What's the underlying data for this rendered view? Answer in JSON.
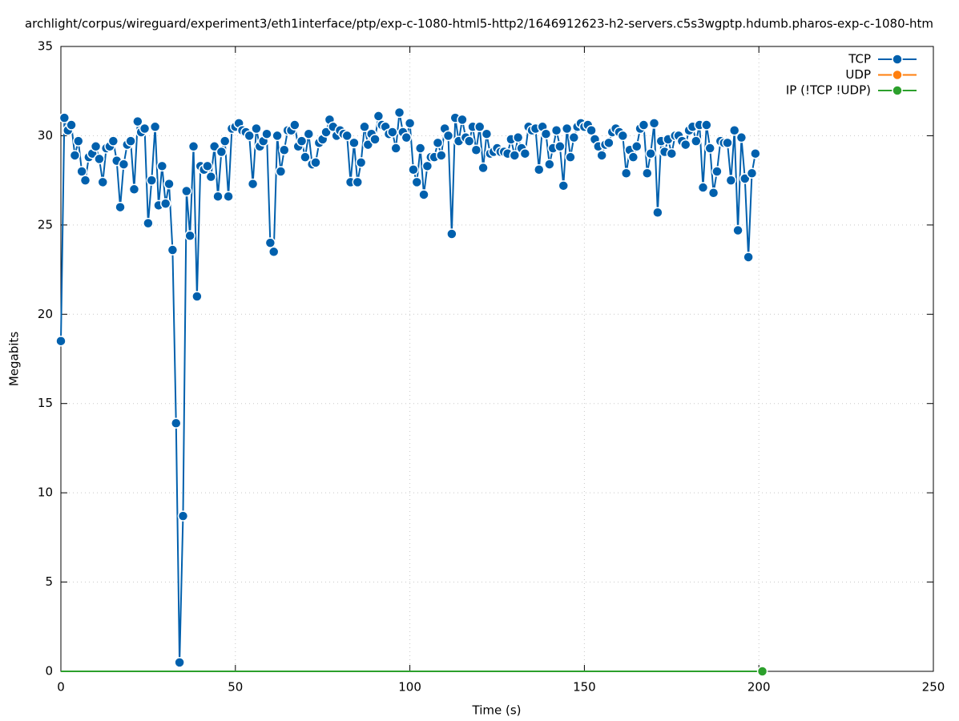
{
  "chart_data": {
    "type": "line",
    "title": "archlight/corpus/wireguard/experiment3/eth1interface/ptp/exp-c-1080-html5-http2/1646912623-h2-servers.c5s3wgptp.hdumb.pharos-exp-c-1080-htm",
    "x_label": "Time (s)",
    "y_label": "Megabits",
    "xlim": [
      0,
      250
    ],
    "xticks": [
      0,
      50,
      100,
      150,
      200,
      250
    ],
    "ylim": [
      0,
      35
    ],
    "yticks": [
      0,
      5,
      10,
      15,
      20,
      25,
      30,
      35
    ],
    "grid": true,
    "legend": "top-right",
    "x": [
      0,
      1,
      2,
      3,
      4,
      5,
      6,
      7,
      8,
      9,
      10,
      11,
      12,
      13,
      14,
      15,
      16,
      17,
      18,
      19,
      20,
      21,
      22,
      23,
      24,
      25,
      26,
      27,
      28,
      29,
      30,
      31,
      32,
      33,
      34,
      35,
      36,
      37,
      38,
      39,
      40,
      41,
      42,
      43,
      44,
      45,
      46,
      47,
      48,
      49,
      50,
      51,
      52,
      53,
      54,
      55,
      56,
      57,
      58,
      59,
      60,
      61,
      62,
      63,
      64,
      65,
      66,
      67,
      68,
      69,
      70,
      71,
      72,
      73,
      74,
      75,
      76,
      77,
      78,
      79,
      80,
      81,
      82,
      83,
      84,
      85,
      86,
      87,
      88,
      89,
      90,
      91,
      92,
      93,
      94,
      95,
      96,
      97,
      98,
      99,
      100,
      101,
      102,
      103,
      104,
      105,
      106,
      107,
      108,
      109,
      110,
      111,
      112,
      113,
      114,
      115,
      116,
      117,
      118,
      119,
      120,
      121,
      122,
      123,
      124,
      125,
      126,
      127,
      128,
      129,
      130,
      131,
      132,
      133,
      134,
      135,
      136,
      137,
      138,
      139,
      140,
      141,
      142,
      143,
      144,
      145,
      146,
      147,
      148,
      149,
      150,
      151,
      152,
      153,
      154,
      155,
      156,
      157,
      158,
      159,
      160,
      161,
      162,
      163,
      164,
      165,
      166,
      167,
      168,
      169,
      170,
      171,
      172,
      173,
      174,
      175,
      176,
      177,
      178,
      179,
      180,
      181,
      182,
      183,
      184,
      185,
      186,
      187,
      188,
      189,
      190,
      191,
      192,
      193,
      194,
      195,
      196,
      197,
      198,
      199,
      200,
      201
    ],
    "series": [
      {
        "name": "TCP",
        "color": "#0060ad",
        "values": [
          18.5,
          31,
          30.3,
          30.6,
          28.9,
          29.7,
          28,
          27.5,
          28.8,
          29,
          29.4,
          28.7,
          27.4,
          29.3,
          29.4,
          29.7,
          28.6,
          26,
          28.4,
          29.5,
          29.7,
          27,
          30.8,
          30.2,
          30.4,
          25.1,
          27.5,
          30.5,
          26.1,
          28.3,
          26.2,
          27.3,
          23.6,
          13.9,
          0.5,
          8.7,
          26.9,
          24.4,
          29.4,
          21,
          28.3,
          28.1,
          28.3,
          27.7,
          29.4,
          26.6,
          29.1,
          29.7,
          26.6,
          30.4,
          30.5,
          30.7,
          30.3,
          30.2,
          30,
          27.3,
          30.4,
          29.4,
          29.7,
          30.1,
          24,
          23.5,
          30,
          28,
          29.2,
          30.3,
          30.3,
          30.6,
          29.4,
          29.7,
          28.8,
          30.1,
          28.4,
          28.5,
          29.6,
          29.8,
          30.2,
          30.9,
          30.5,
          30,
          30.3,
          30.1,
          30,
          27.4,
          29.6,
          27.4,
          28.5,
          30.5,
          29.5,
          30.1,
          29.8,
          31.1,
          30.6,
          30.5,
          30.1,
          30.2,
          29.3,
          31.3,
          30.2,
          29.9,
          30.7,
          28.1,
          27.4,
          29.3,
          26.7,
          28.3,
          28.8,
          28.8,
          29.6,
          28.9,
          30.4,
          30,
          24.5,
          31,
          29.7,
          30.9,
          29.9,
          29.7,
          30.5,
          29.2,
          30.5,
          28.2,
          30.1,
          29,
          29.1,
          29.3,
          29.1,
          29.1,
          29,
          29.8,
          28.9,
          29.9,
          29.3,
          29,
          30.5,
          30.3,
          30.4,
          28.1,
          30.5,
          30.1,
          28.4,
          29.3,
          30.3,
          29.4,
          27.2,
          30.4,
          28.8,
          29.9,
          30.5,
          30.7,
          30.5,
          30.6,
          30.3,
          29.8,
          29.4,
          28.9,
          29.5,
          29.6,
          30.2,
          30.4,
          30.2,
          30,
          27.9,
          29.2,
          28.8,
          29.4,
          30.4,
          30.6,
          27.9,
          29,
          30.7,
          25.7,
          29.7,
          29.1,
          29.8,
          29,
          30,
          30,
          29.7,
          29.5,
          30.3,
          30.5,
          29.7,
          30.6,
          27.1,
          30.6,
          29.3,
          26.8,
          28,
          29.7,
          29.6,
          29.6,
          27.5,
          30.3,
          24.7,
          29.9,
          27.6,
          23.2,
          27.9,
          29,
          null,
          null
        ]
      },
      {
        "name": "UDP",
        "color": "#ff7f0e",
        "values": [
          0,
          0,
          0,
          0,
          0,
          0,
          0,
          0,
          0,
          0,
          0,
          0,
          0,
          0,
          0,
          0,
          0,
          0,
          0,
          0,
          0,
          0,
          0,
          0,
          0,
          0,
          0,
          0,
          0,
          0,
          0,
          0,
          0,
          0,
          0,
          0,
          0,
          0,
          0,
          0,
          0,
          0,
          0,
          0,
          0,
          0,
          0,
          0,
          0,
          0,
          0,
          0,
          0,
          0,
          0,
          0,
          0,
          0,
          0,
          0,
          0,
          0,
          0,
          0,
          0,
          0,
          0,
          0,
          0,
          0,
          0,
          0,
          0,
          0,
          0,
          0,
          0,
          0,
          0,
          0,
          0,
          0,
          0,
          0,
          0,
          0,
          0,
          0,
          0,
          0,
          0,
          0,
          0,
          0,
          0,
          0,
          0,
          0,
          0,
          0,
          0,
          0,
          0,
          0,
          0,
          0,
          0,
          0,
          0,
          0,
          0,
          0,
          0,
          0,
          0,
          0,
          0,
          0,
          0,
          0,
          0,
          0,
          0,
          0,
          0,
          0,
          0,
          0,
          0,
          0,
          0,
          0,
          0,
          0,
          0,
          0,
          0,
          0,
          0,
          0,
          0,
          0,
          0,
          0,
          0,
          0,
          0,
          0,
          0,
          0,
          0,
          0,
          0,
          0,
          0,
          0,
          0,
          0,
          0,
          0,
          0,
          0,
          0,
          0,
          0,
          0,
          0,
          0,
          0,
          0,
          0,
          0,
          0,
          0,
          0,
          0,
          0,
          0,
          0,
          0,
          0,
          0,
          0,
          0,
          0,
          0,
          0,
          0,
          0,
          0,
          0,
          0,
          0,
          0,
          0,
          0,
          0,
          0,
          0,
          0,
          0,
          0
        ]
      },
      {
        "name": "IP (!TCP  !UDP)",
        "color": "#2ca02c",
        "values": [
          0,
          0,
          0,
          0,
          0,
          0,
          0,
          0,
          0,
          0,
          0,
          0,
          0,
          0,
          0,
          0,
          0,
          0,
          0,
          0,
          0,
          0,
          0,
          0,
          0,
          0,
          0,
          0,
          0,
          0,
          0,
          0,
          0,
          0,
          0,
          0,
          0,
          0,
          0,
          0,
          0,
          0,
          0,
          0,
          0,
          0,
          0,
          0,
          0,
          0,
          0,
          0,
          0,
          0,
          0,
          0,
          0,
          0,
          0,
          0,
          0,
          0,
          0,
          0,
          0,
          0,
          0,
          0,
          0,
          0,
          0,
          0,
          0,
          0,
          0,
          0,
          0,
          0,
          0,
          0,
          0,
          0,
          0,
          0,
          0,
          0,
          0,
          0,
          0,
          0,
          0,
          0,
          0,
          0,
          0,
          0,
          0,
          0,
          0,
          0,
          0,
          0,
          0,
          0,
          0,
          0,
          0,
          0,
          0,
          0,
          0,
          0,
          0,
          0,
          0,
          0,
          0,
          0,
          0,
          0,
          0,
          0,
          0,
          0,
          0,
          0,
          0,
          0,
          0,
          0,
          0,
          0,
          0,
          0,
          0,
          0,
          0,
          0,
          0,
          0,
          0,
          0,
          0,
          0,
          0,
          0,
          0,
          0,
          0,
          0,
          0,
          0,
          0,
          0,
          0,
          0,
          0,
          0,
          0,
          0,
          0,
          0,
          0,
          0,
          0,
          0,
          0,
          0,
          0,
          0,
          0,
          0,
          0,
          0,
          0,
          0,
          0,
          0,
          0,
          0,
          0,
          0,
          0,
          0,
          0,
          0,
          0,
          0,
          0,
          0,
          0,
          0,
          0,
          0,
          0,
          0,
          0,
          0,
          0,
          0,
          0,
          0
        ]
      }
    ]
  }
}
